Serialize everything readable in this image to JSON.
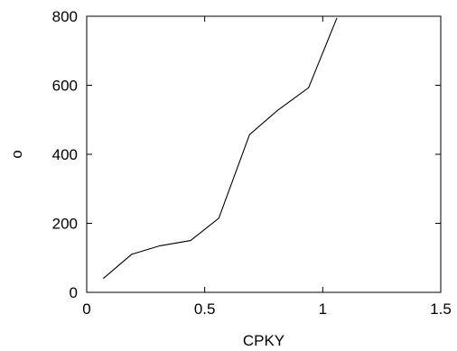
{
  "chart_data": {
    "type": "line",
    "title": "",
    "xlabel": "CPKY",
    "ylabel": "o",
    "xlim": [
      0,
      1.5
    ],
    "ylim": [
      0,
      800
    ],
    "grid": false,
    "x_ticks": [
      0,
      0.5,
      1,
      1.5
    ],
    "x_tick_labels": [
      "0",
      "0.5",
      "1",
      "1.5"
    ],
    "y_ticks": [
      0,
      200,
      400,
      600,
      800
    ],
    "y_tick_labels": [
      "0",
      "200",
      "400",
      "600",
      "800"
    ],
    "series": [
      {
        "x": [
          0.07,
          0.19,
          0.31,
          0.44,
          0.56,
          0.69,
          0.81,
          0.94,
          1.06
        ],
        "y": [
          40,
          110,
          135,
          150,
          215,
          457,
          528,
          593,
          795
        ]
      }
    ]
  }
}
